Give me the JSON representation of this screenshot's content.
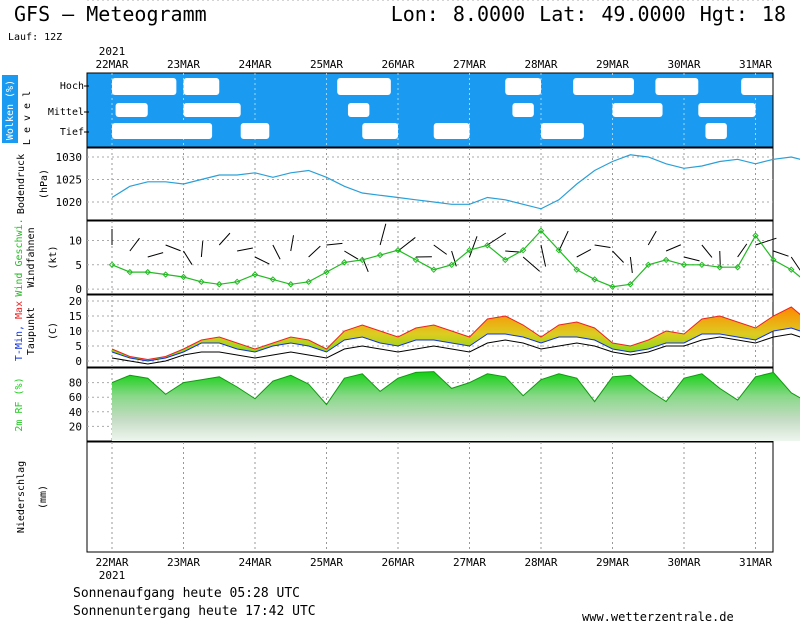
{
  "header": {
    "title": "GFS – Meteogramm",
    "location": "Lon: 8.0000  Lat: 49.0000  Hgt: 18",
    "run": "Lauf: 12Z"
  },
  "footer": {
    "sunrise": "Sonnenaufgang heute 05:28 UTC",
    "sunset": "Sonnenuntergang heute 17:42 UTC",
    "source": "www.wetterzentrale.de"
  },
  "colors": {
    "cloud_bg": "#1a9af0",
    "pressure": "#2aa0d8",
    "wind": "#22bb22",
    "tmin": "#1133dd",
    "tmax": "#ee2222",
    "humidity": "#22cc22"
  },
  "chart_data": [
    {
      "type": "heatmap",
      "panel": "clouds",
      "ylabel": "Wolken (%)",
      "ylabel2": "L e v e l",
      "levels": [
        "Hoch",
        "Mittel",
        "Tief"
      ],
      "x": [
        "22MAR",
        "23MAR",
        "24MAR",
        "25MAR",
        "26MAR",
        "27MAR",
        "28MAR",
        "29MAR",
        "30MAR",
        "31MAR"
      ],
      "x_year": "2021",
      "note": "white = cloud, blue = clear",
      "cloud_blocks": [
        {
          "level": "Hoch",
          "from": 0.0,
          "to": 0.9
        },
        {
          "level": "Hoch",
          "from": 1.0,
          "to": 1.5
        },
        {
          "level": "Hoch",
          "from": 3.15,
          "to": 3.9
        },
        {
          "level": "Hoch",
          "from": 5.5,
          "to": 6.0
        },
        {
          "level": "Hoch",
          "from": 6.45,
          "to": 7.3
        },
        {
          "level": "Hoch",
          "from": 7.6,
          "to": 8.2
        },
        {
          "level": "Hoch",
          "from": 8.8,
          "to": 9.6
        },
        {
          "level": "Mittel",
          "from": 0.05,
          "to": 0.5
        },
        {
          "level": "Mittel",
          "from": 1.0,
          "to": 1.8
        },
        {
          "level": "Mittel",
          "from": 3.3,
          "to": 3.6
        },
        {
          "level": "Mittel",
          "from": 5.6,
          "to": 5.9
        },
        {
          "level": "Mittel",
          "from": 7.0,
          "to": 7.7
        },
        {
          "level": "Mittel",
          "from": 8.2,
          "to": 9.0
        },
        {
          "level": "Tief",
          "from": 0.0,
          "to": 1.4
        },
        {
          "level": "Tief",
          "from": 1.8,
          "to": 2.2
        },
        {
          "level": "Tief",
          "from": 3.5,
          "to": 4.0
        },
        {
          "level": "Tief",
          "from": 4.5,
          "to": 5.0
        },
        {
          "level": "Tief",
          "from": 6.0,
          "to": 6.6
        },
        {
          "level": "Tief",
          "from": 8.3,
          "to": 8.6
        }
      ]
    },
    {
      "type": "line",
      "panel": "pressure",
      "ylabel": "Bodendruck",
      "yunit": "(hPa)",
      "yticks": [
        1020,
        1025,
        1030
      ],
      "ylim": [
        1016,
        1032
      ],
      "x": [
        0,
        0.25,
        0.5,
        0.75,
        1,
        1.25,
        1.5,
        1.75,
        2,
        2.25,
        2.5,
        2.75,
        3,
        3.25,
        3.5,
        3.75,
        4,
        4.25,
        4.5,
        4.75,
        5,
        5.25,
        5.5,
        5.75,
        6,
        6.25,
        6.5,
        6.75,
        7,
        7.25,
        7.5,
        7.75,
        8,
        8.25,
        8.5,
        8.75,
        9,
        9.25,
        9.5,
        9.75
      ],
      "y": [
        1021,
        1023.5,
        1024.5,
        1024.5,
        1024,
        1025,
        1026,
        1026,
        1026.5,
        1025.5,
        1026.5,
        1027,
        1025.5,
        1023.5,
        1022,
        1021.5,
        1021,
        1020.5,
        1020,
        1019.5,
        1019.5,
        1021,
        1020.5,
        1019.5,
        1018.5,
        1020.5,
        1024,
        1027,
        1029,
        1030.5,
        1030,
        1028.5,
        1027.5,
        1028,
        1029,
        1029.5,
        1028.5,
        1029.5,
        1030,
        1029
      ]
    },
    {
      "type": "line",
      "panel": "wind",
      "ylabel": "Wind Geschwi.",
      "ylabel2": "Windfahnen",
      "yunit": "(kt)",
      "yticks": [
        0,
        5,
        10
      ],
      "ylim": [
        -1,
        14
      ],
      "series": [
        {
          "name": "Wind Geschwi.",
          "x": [
            0,
            0.25,
            0.5,
            0.75,
            1,
            1.25,
            1.5,
            1.75,
            2,
            2.25,
            2.5,
            2.75,
            3,
            3.25,
            3.5,
            3.75,
            4,
            4.25,
            4.5,
            4.75,
            5,
            5.25,
            5.5,
            5.75,
            6,
            6.25,
            6.5,
            6.75,
            7,
            7.25,
            7.5,
            7.75,
            8,
            8.25,
            8.5,
            8.75,
            9,
            9.25,
            9.5,
            9.75
          ],
          "y": [
            5,
            3.5,
            3.5,
            3,
            2.5,
            1.5,
            1,
            1.5,
            3,
            2,
            1,
            1.5,
            3.5,
            5.5,
            6,
            7,
            8,
            6,
            4,
            5,
            8,
            9,
            6,
            8,
            12,
            8,
            4,
            2,
            0.5,
            1,
            5,
            6,
            5,
            5,
            4.5,
            4.5,
            11,
            6,
            4,
            1
          ]
        }
      ],
      "barbs": "wind barbs along the panel"
    },
    {
      "type": "area",
      "panel": "temperature",
      "ylabel": "T-Min, Max",
      "ylabel2": "Taupunkt",
      "yunit": "(C)",
      "yticks": [
        0,
        5,
        10,
        15,
        20
      ],
      "ylim": [
        -2,
        22
      ],
      "x": [
        0,
        0.25,
        0.5,
        0.75,
        1,
        1.25,
        1.5,
        1.75,
        2,
        2.25,
        2.5,
        2.75,
        3,
        3.25,
        3.5,
        3.75,
        4,
        4.25,
        4.5,
        4.75,
        5,
        5.25,
        5.5,
        5.75,
        6,
        6.25,
        6.5,
        6.75,
        7,
        7.25,
        7.5,
        7.75,
        8,
        8.25,
        8.5,
        8.75,
        9,
        9.25,
        9.5,
        9.75
      ],
      "series": [
        {
          "name": "T-Max",
          "y": [
            4,
            1.5,
            0.5,
            1.5,
            4,
            7,
            8,
            6,
            4,
            6,
            8,
            7,
            4,
            10,
            12,
            10,
            8,
            11,
            12,
            10,
            8,
            14,
            15,
            12,
            8,
            12,
            13,
            11,
            6,
            5,
            7,
            10,
            9,
            14,
            15,
            13,
            11,
            15,
            18,
            13
          ]
        },
        {
          "name": "T-Min",
          "y": [
            3,
            1,
            0,
            1,
            3,
            6,
            6,
            4,
            3,
            5,
            6,
            5,
            3,
            7,
            8,
            6,
            5,
            7,
            7,
            6,
            5,
            9,
            9,
            8,
            6,
            8,
            8,
            7,
            4,
            3,
            4,
            6,
            6,
            9,
            9,
            8,
            7,
            10,
            11,
            9
          ]
        },
        {
          "name": "Taupunkt",
          "y": [
            1,
            0,
            -1,
            0,
            2,
            3,
            3,
            2,
            1,
            2,
            3,
            2,
            1,
            4,
            5,
            4,
            3,
            4,
            5,
            4,
            3,
            6,
            7,
            6,
            4,
            5,
            6,
            5,
            3,
            2,
            3,
            5,
            5,
            7,
            8,
            7,
            6,
            8,
            9,
            7
          ]
        }
      ]
    },
    {
      "type": "area",
      "panel": "humidity",
      "ylabel": "2m RF (%)",
      "yticks": [
        20,
        40,
        60,
        80
      ],
      "ylim": [
        0,
        100
      ],
      "series": [
        {
          "name": "2m RF (%)",
          "x": [
            0,
            0.25,
            0.5,
            0.75,
            1,
            1.25,
            1.5,
            1.75,
            2,
            2.25,
            2.5,
            2.75,
            3,
            3.25,
            3.5,
            3.75,
            4,
            4.25,
            4.5,
            4.75,
            5,
            5.25,
            5.5,
            5.75,
            6,
            6.25,
            6.5,
            6.75,
            7,
            7.25,
            7.5,
            7.75,
            8,
            8.25,
            8.5,
            8.75,
            9,
            9.25,
            9.5,
            9.75
          ],
          "y": [
            80,
            90,
            86,
            64,
            80,
            84,
            88,
            74,
            58,
            82,
            90,
            78,
            50,
            86,
            92,
            68,
            86,
            94,
            95,
            72,
            80,
            92,
            88,
            62,
            84,
            92,
            86,
            54,
            88,
            90,
            70,
            54,
            86,
            92,
            72,
            56,
            88,
            94,
            66,
            52
          ]
        }
      ]
    },
    {
      "type": "bar",
      "panel": "precipitation",
      "ylabel": "Niederschlag",
      "yunit": "(mm)",
      "yticks": [
        0,
        5,
        10,
        15
      ],
      "ylim": [
        0,
        17
      ],
      "x": [
        1.6,
        2.4,
        4.0,
        4.1,
        5.0,
        5.1,
        5.6,
        5.7,
        6.0
      ],
      "values": [
        0.1,
        0.1,
        0.3,
        0.6,
        0.1,
        0.5,
        0.2,
        0.2,
        0.1
      ]
    }
  ]
}
